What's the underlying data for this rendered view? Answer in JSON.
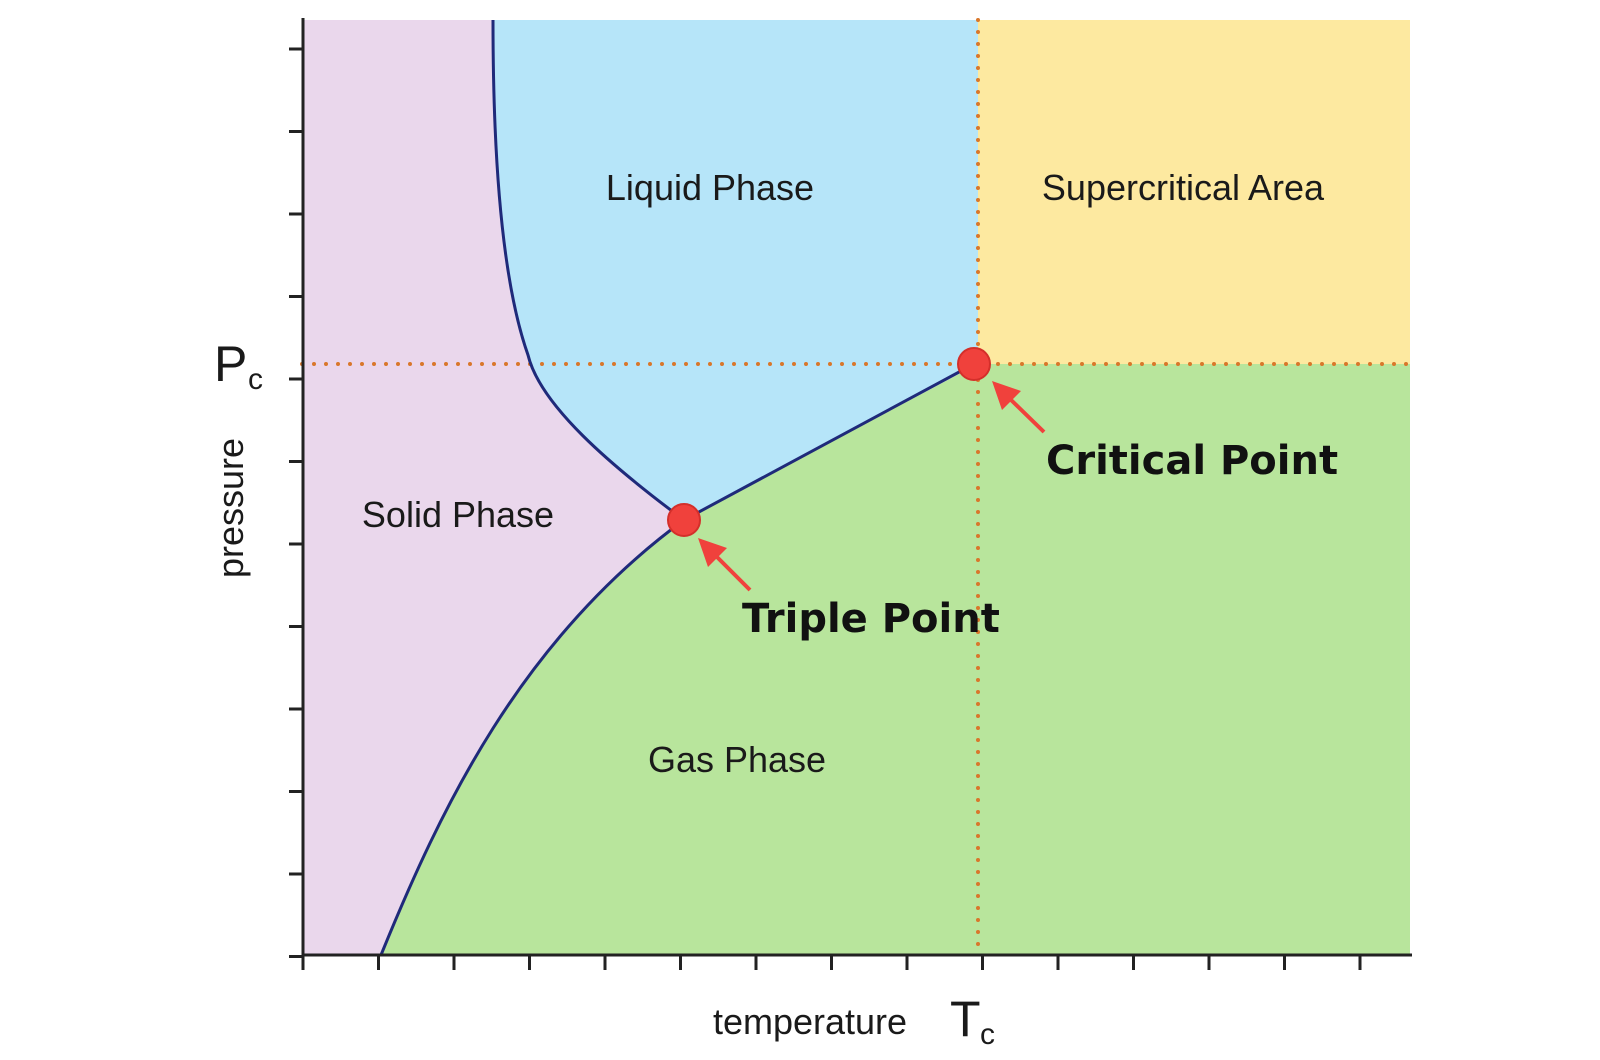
{
  "regions": {
    "solid": {
      "label": "Solid Phase",
      "color": "#ead7ec"
    },
    "liquid": {
      "label": "Liquid Phase",
      "color": "#b6e5f9"
    },
    "gas": {
      "label": "Gas Phase",
      "color": "#b8e59c"
    },
    "supercritical": {
      "label": "Supercritical Area",
      "color": "#fde9a0"
    }
  },
  "points": {
    "triple": {
      "label": "Triple Point",
      "color": "#f0413c"
    },
    "critical": {
      "label": "Critical Point",
      "color": "#f0413c"
    }
  },
  "axes": {
    "x_label": "temperature",
    "y_label": "pressure",
    "critical_temperature": {
      "symbol": "T",
      "subscript": "c"
    },
    "critical_pressure": {
      "symbol": "P",
      "subscript": "c"
    }
  },
  "colors": {
    "boundary": "#1f2a7a",
    "guide_dots": "#d9772b",
    "arrow": "#f0413c",
    "axis": "#222222"
  }
}
